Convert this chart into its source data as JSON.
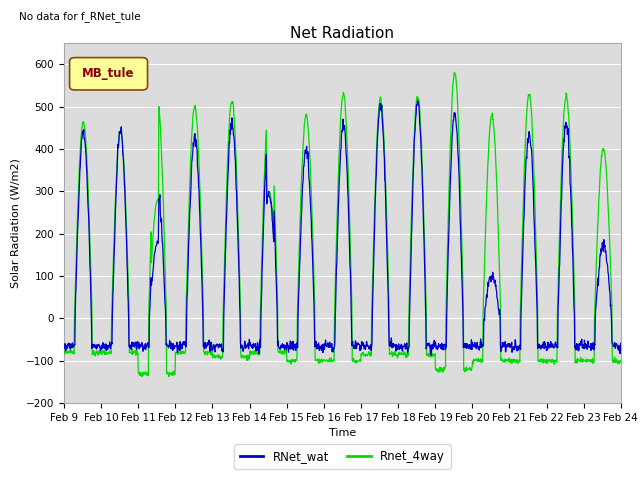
{
  "title": "Net Radiation",
  "no_data_text": "No data for f_RNet_tule",
  "mb_tule_label": "MB_tule",
  "ylabel": "Solar Radiation (W/m2)",
  "xlabel": "Time",
  "ylim": [
    -200,
    650
  ],
  "yticks": [
    -200,
    -100,
    0,
    100,
    200,
    300,
    400,
    500,
    600
  ],
  "xtick_labels": [
    "Feb 9",
    "Feb 10",
    "Feb 11",
    "Feb 12",
    "Feb 13",
    "Feb 14",
    "Feb 15",
    "Feb 16",
    "Feb 17",
    "Feb 18",
    "Feb 19",
    "Feb 20",
    "Feb 21",
    "Feb 22",
    "Feb 23",
    "Feb 24"
  ],
  "line1_color": "#0000cc",
  "line2_color": "#00dd00",
  "legend_labels": [
    "RNet_wat",
    "Rnet_4way"
  ],
  "bg_color": "#dcdcdc",
  "title_fontsize": 11,
  "label_fontsize": 8,
  "tick_fontsize": 7.5
}
